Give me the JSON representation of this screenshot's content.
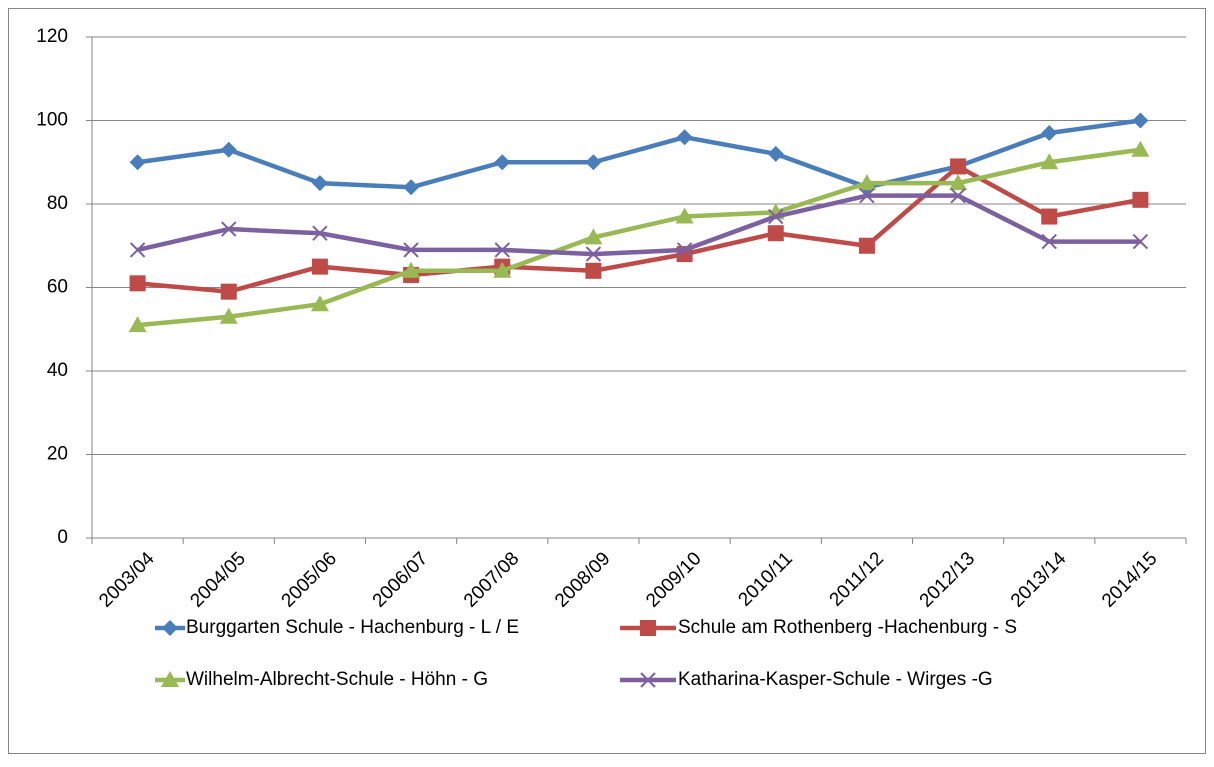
{
  "chart_data": {
    "type": "line",
    "categories": [
      "2003/04",
      "2004/05",
      "2005/06",
      "2006/07",
      "2007/08",
      "2008/09",
      "2009/10",
      "2010/11",
      "2011/12",
      "2012/13",
      "2013/14",
      "2014/15"
    ],
    "series": [
      {
        "name": "Burggarten Schule - Hachenburg - L / E",
        "color": "#4a7ebb",
        "marker": "diamond",
        "values": [
          90,
          93,
          85,
          84,
          90,
          90,
          96,
          92,
          84,
          89,
          97,
          100
        ]
      },
      {
        "name": "Schule am Rothenberg -Hachenburg -  S",
        "color": "#be4b48",
        "marker": "square",
        "values": [
          61,
          59,
          65,
          63,
          65,
          64,
          68,
          73,
          70,
          89,
          77,
          81
        ]
      },
      {
        "name": "Wilhelm-Albrecht-Schule - Höhn - G",
        "color": "#98b954",
        "marker": "triangle",
        "values": [
          51,
          53,
          56,
          64,
          64,
          72,
          77,
          78,
          85,
          85,
          90,
          93
        ]
      },
      {
        "name": "Katharina-Kasper-Schule - Wirges -G",
        "color": "#7d60a0",
        "marker": "x",
        "values": [
          69,
          74,
          73,
          69,
          69,
          68,
          69,
          77,
          82,
          82,
          71,
          71
        ]
      }
    ],
    "ylim": [
      0,
      120
    ],
    "yticks": [
      0,
      20,
      40,
      60,
      80,
      100,
      120
    ],
    "grid": true,
    "legend": "bottom"
  }
}
